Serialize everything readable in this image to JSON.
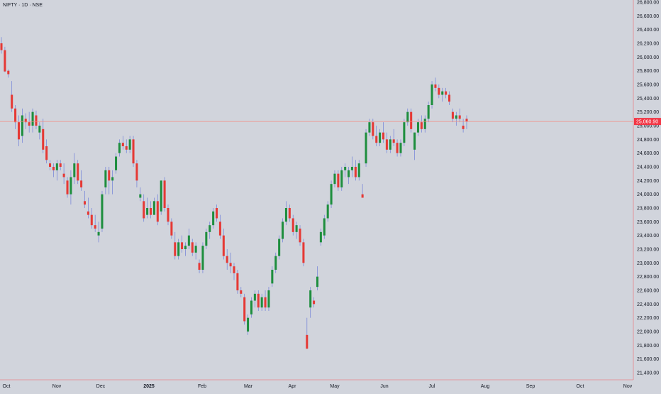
{
  "chart_data": {
    "type": "candlestick",
    "title": "NIFTY · 1D · NSE",
    "price_axis": {
      "ticks": [
        "26,800.00",
        "26,600.00",
        "26,400.00",
        "26,200.00",
        "26,000.00",
        "25,800.00",
        "25,600.00",
        "25,400.00",
        "25,200.00",
        "25,000.00",
        "24,800.00",
        "24,600.00",
        "24,400.00",
        "24,200.00",
        "24,000.00",
        "23,800.00",
        "23,600.00",
        "23,400.00",
        "23,200.00",
        "23,000.00",
        "22,800.00",
        "22,600.00",
        "22,400.00",
        "22,200.00",
        "22,000.00",
        "21,800.00",
        "21,600.00",
        "21,400.00"
      ],
      "ylim": [
        21300,
        26850
      ]
    },
    "time_axis": {
      "labels": [
        "Oct",
        "Nov",
        "Dec",
        "2025",
        "Feb",
        "Mar",
        "Apr",
        "May",
        "Jun",
        "Jul",
        "Aug",
        "Sep",
        "Oct",
        "Nov"
      ]
    },
    "current_price": {
      "label": "25,060.90",
      "value": 25060.9
    },
    "colors": {
      "up": "#1e8e3e",
      "down": "#e53935",
      "wick": "#6f7fd8",
      "price_line": "#f28b82"
    },
    "candles": [
      [
        26200,
        26290,
        26050,
        26100
      ],
      [
        26100,
        26150,
        25780,
        25790
      ],
      [
        25800,
        25820,
        25700,
        25750
      ],
      [
        25450,
        25650,
        25200,
        25250
      ],
      [
        25250,
        25300,
        24950,
        25050
      ],
      [
        25050,
        25150,
        24700,
        24800
      ],
      [
        24850,
        25250,
        24750,
        25150
      ],
      [
        25100,
        25180,
        24950,
        25050
      ],
      [
        25050,
        25200,
        24900,
        25000
      ],
      [
        25000,
        25250,
        24900,
        25200
      ],
      [
        25150,
        25220,
        24950,
        25000
      ],
      [
        24900,
        25050,
        24800,
        25000
      ],
      [
        24950,
        25100,
        24600,
        24650
      ],
      [
        24700,
        24800,
        24450,
        24500
      ],
      [
        24450,
        24500,
        24350,
        24400
      ],
      [
        24400,
        24450,
        24250,
        24350
      ],
      [
        24350,
        24500,
        24200,
        24450
      ],
      [
        24450,
        24500,
        24350,
        24400
      ],
      [
        24300,
        24450,
        24150,
        24250
      ],
      [
        24200,
        24250,
        23950,
        24000
      ],
      [
        24000,
        24350,
        23850,
        24250
      ],
      [
        24250,
        24600,
        24150,
        24450
      ],
      [
        24450,
        24500,
        24150,
        24200
      ],
      [
        24200,
        24350,
        24050,
        24100
      ],
      [
        23900,
        24050,
        23800,
        23850
      ],
      [
        23750,
        23950,
        23650,
        23700
      ],
      [
        23700,
        23800,
        23500,
        23550
      ],
      [
        23550,
        23700,
        23450,
        23500
      ],
      [
        23400,
        23600,
        23300,
        23450
      ],
      [
        23500,
        24050,
        23450,
        24000
      ],
      [
        24100,
        24400,
        24000,
        24350
      ],
      [
        24350,
        24400,
        24000,
        24200
      ],
      [
        24200,
        24350,
        24000,
        24250
      ],
      [
        24350,
        24600,
        24300,
        24550
      ],
      [
        24600,
        24800,
        24550,
        24750
      ],
      [
        24750,
        24850,
        24650,
        24700
      ],
      [
        24700,
        24800,
        24600,
        24650
      ],
      [
        24650,
        24850,
        24600,
        24800
      ],
      [
        24800,
        24850,
        24400,
        24450
      ],
      [
        24450,
        24500,
        24100,
        24200
      ],
      [
        23950,
        24100,
        23900,
        24000
      ],
      [
        23900,
        24000,
        23600,
        23650
      ],
      [
        23700,
        23950,
        23650,
        23800
      ],
      [
        23800,
        23900,
        23650,
        23700
      ],
      [
        23700,
        23950,
        23700,
        23900
      ],
      [
        23900,
        24000,
        23550,
        23600
      ],
      [
        23750,
        24200,
        23700,
        24200
      ],
      [
        24200,
        24250,
        23750,
        23800
      ],
      [
        23800,
        23850,
        23550,
        23600
      ],
      [
        23600,
        23650,
        23350,
        23400
      ],
      [
        23300,
        23450,
        23050,
        23100
      ],
      [
        23100,
        23350,
        23050,
        23300
      ],
      [
        23300,
        23400,
        23150,
        23200
      ],
      [
        23200,
        23300,
        23100,
        23250
      ],
      [
        23250,
        23500,
        23200,
        23400
      ],
      [
        23300,
        23350,
        23100,
        23150
      ],
      [
        23150,
        23300,
        23050,
        23250
      ],
      [
        23000,
        23050,
        22850,
        22900
      ],
      [
        22900,
        23300,
        22850,
        23250
      ],
      [
        23250,
        23500,
        23200,
        23450
      ],
      [
        23450,
        23600,
        23350,
        23550
      ],
      [
        23550,
        23800,
        23500,
        23750
      ],
      [
        23800,
        23850,
        23600,
        23650
      ],
      [
        23600,
        23700,
        23350,
        23400
      ],
      [
        23400,
        23500,
        23050,
        23100
      ],
      [
        23100,
        23200,
        22900,
        23000
      ],
      [
        23000,
        23150,
        22850,
        22950
      ],
      [
        22950,
        23000,
        22750,
        22850
      ],
      [
        22850,
        22900,
        22550,
        22600
      ],
      [
        22600,
        22650,
        22500,
        22550
      ],
      [
        22500,
        22550,
        22100,
        22150
      ],
      [
        22000,
        22250,
        21950,
        22200
      ],
      [
        22250,
        22500,
        22200,
        22450
      ],
      [
        22450,
        22600,
        22350,
        22550
      ],
      [
        22550,
        22600,
        22300,
        22350
      ],
      [
        22350,
        22550,
        22300,
        22500
      ],
      [
        22500,
        22600,
        22300,
        22350
      ],
      [
        22350,
        22650,
        22300,
        22600
      ],
      [
        22700,
        22950,
        22650,
        22900
      ],
      [
        22900,
        23150,
        22850,
        23100
      ],
      [
        23100,
        23400,
        23050,
        23350
      ],
      [
        23350,
        23650,
        23300,
        23600
      ],
      [
        23600,
        23900,
        23550,
        23800
      ],
      [
        23800,
        23850,
        23600,
        23650
      ],
      [
        23650,
        23700,
        23400,
        23450
      ],
      [
        23450,
        23600,
        23350,
        23550
      ],
      [
        23500,
        23550,
        23250,
        23300
      ],
      [
        23300,
        23350,
        22950,
        23000
      ],
      [
        21950,
        22200,
        21750,
        21750
      ],
      [
        22350,
        22650,
        22200,
        22600
      ],
      [
        22450,
        22500,
        22350,
        22400
      ],
      [
        22650,
        22950,
        22600,
        22800
      ],
      [
        23300,
        23500,
        23250,
        23450
      ],
      [
        23400,
        23700,
        23350,
        23650
      ],
      [
        23650,
        23900,
        23600,
        23850
      ],
      [
        23850,
        24200,
        23800,
        24150
      ],
      [
        24150,
        24350,
        24100,
        24300
      ],
      [
        24300,
        24350,
        24050,
        24100
      ],
      [
        24100,
        24400,
        24050,
        24350
      ],
      [
        24350,
        24450,
        24250,
        24400
      ],
      [
        24250,
        24400,
        24150,
        24350
      ],
      [
        24350,
        24550,
        24250,
        24400
      ],
      [
        24400,
        24500,
        24200,
        24250
      ],
      [
        24250,
        24500,
        24200,
        24450
      ],
      [
        24000,
        24150,
        23950,
        23950
      ],
      [
        24450,
        24950,
        24400,
        24900
      ],
      [
        24900,
        25100,
        24850,
        25050
      ],
      [
        25050,
        25100,
        24800,
        24850
      ],
      [
        24850,
        25000,
        24700,
        24750
      ],
      [
        24750,
        24950,
        24700,
        24900
      ],
      [
        24900,
        25050,
        24750,
        24800
      ],
      [
        24800,
        24900,
        24600,
        24650
      ],
      [
        24650,
        24850,
        24600,
        24800
      ],
      [
        24800,
        24950,
        24700,
        24750
      ],
      [
        24750,
        24800,
        24550,
        24600
      ],
      [
        24600,
        24800,
        24550,
        24750
      ],
      [
        24750,
        25100,
        24700,
        25050
      ],
      [
        25050,
        25250,
        25000,
        25200
      ],
      [
        25200,
        25250,
        24900,
        24950
      ],
      [
        24650,
        24900,
        24500,
        24900
      ],
      [
        24900,
        25100,
        24850,
        25050
      ],
      [
        25050,
        25150,
        24900,
        24950
      ],
      [
        24950,
        25150,
        24900,
        25100
      ],
      [
        25100,
        25350,
        25050,
        25300
      ],
      [
        25300,
        25650,
        25250,
        25600
      ],
      [
        25600,
        25700,
        25500,
        25550
      ],
      [
        25550,
        25600,
        25400,
        25450
      ],
      [
        25450,
        25550,
        25350,
        25500
      ],
      [
        25500,
        25550,
        25400,
        25450
      ],
      [
        25450,
        25500,
        25300,
        25350
      ],
      [
        25200,
        25250,
        25050,
        25100
      ],
      [
        25100,
        25200,
        25000,
        25150
      ],
      [
        25150,
        25250,
        25050,
        25100
      ],
      [
        25000,
        25100,
        24900,
        24950
      ],
      [
        25100,
        25150,
        24950,
        25060.9
      ]
    ]
  }
}
